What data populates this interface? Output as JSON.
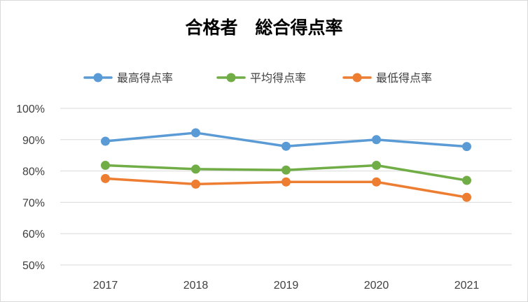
{
  "chart_data": {
    "type": "line",
    "title": "合格者　総合得点率",
    "categories": [
      "2017",
      "2018",
      "2019",
      "2020",
      "2021"
    ],
    "series": [
      {
        "name": "最高得点率",
        "color": "#5b9bd5",
        "values": [
          89.5,
          92.2,
          87.9,
          90.0,
          87.8
        ]
      },
      {
        "name": "平均得点率",
        "color": "#70ad47",
        "values": [
          81.8,
          80.6,
          80.3,
          81.8,
          77.0
        ]
      },
      {
        "name": "最低得点率",
        "color": "#ed7d31",
        "values": [
          77.6,
          75.8,
          76.5,
          76.5,
          71.6
        ]
      }
    ],
    "ylim": [
      50,
      100
    ],
    "yticks": [
      "50%",
      "60%",
      "70%",
      "80%",
      "90%",
      "100%"
    ],
    "grid": true,
    "legend_position": "top"
  }
}
